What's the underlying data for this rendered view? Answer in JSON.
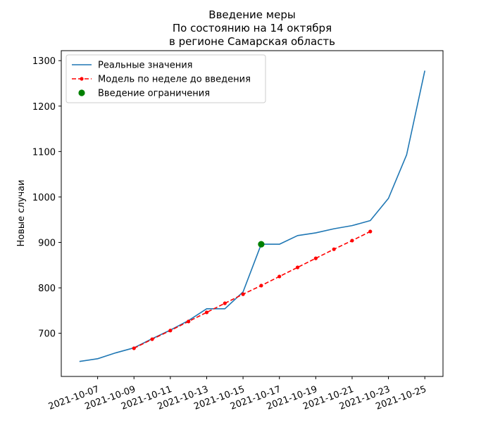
{
  "chart_data": {
    "type": "line",
    "title_lines": [
      "Введение меры",
      "По состоянию на 14 октября",
      "в регионе Самарская область"
    ],
    "xlabel": "",
    "ylabel": "Новые случаи",
    "xlim": [
      "2021-10-05",
      "2021-10-26"
    ],
    "ylim": [
      605,
      1322
    ],
    "x_ticks": [
      "2021-10-07",
      "2021-10-09",
      "2021-10-11",
      "2021-10-13",
      "2021-10-15",
      "2021-10-17",
      "2021-10-19",
      "2021-10-21",
      "2021-10-23",
      "2021-10-25"
    ],
    "y_ticks": [
      700,
      800,
      900,
      1000,
      1100,
      1200,
      1300
    ],
    "x_tick_rotation_deg": 20,
    "grid": false,
    "legend_position": "top-left",
    "series": [
      {
        "name": "Реальные значения",
        "style": "solid",
        "marker": "none",
        "color": "#1f77b4",
        "points": [
          {
            "x": "2021-10-06",
            "y": 638
          },
          {
            "x": "2021-10-07",
            "y": 644
          },
          {
            "x": "2021-10-08",
            "y": 657
          },
          {
            "x": "2021-10-09",
            "y": 668
          },
          {
            "x": "2021-10-10",
            "y": 688
          },
          {
            "x": "2021-10-11",
            "y": 707
          },
          {
            "x": "2021-10-12",
            "y": 728
          },
          {
            "x": "2021-10-13",
            "y": 754
          },
          {
            "x": "2021-10-14",
            "y": 754
          },
          {
            "x": "2021-10-15",
            "y": 791
          },
          {
            "x": "2021-10-16",
            "y": 896
          },
          {
            "x": "2021-10-17",
            "y": 896
          },
          {
            "x": "2021-10-18",
            "y": 915
          },
          {
            "x": "2021-10-19",
            "y": 921
          },
          {
            "x": "2021-10-20",
            "y": 930
          },
          {
            "x": "2021-10-21",
            "y": 937
          },
          {
            "x": "2021-10-22",
            "y": 948
          },
          {
            "x": "2021-10-23",
            "y": 997
          },
          {
            "x": "2021-10-24",
            "y": 1093
          },
          {
            "x": "2021-10-25",
            "y": 1278
          }
        ]
      },
      {
        "name": "Модель по неделе до введения",
        "style": "dashed",
        "marker": "dot",
        "color": "#ff0000",
        "points": [
          {
            "x": "2021-10-09",
            "y": 667
          },
          {
            "x": "2021-10-10",
            "y": 687
          },
          {
            "x": "2021-10-11",
            "y": 706
          },
          {
            "x": "2021-10-12",
            "y": 726
          },
          {
            "x": "2021-10-13",
            "y": 746
          },
          {
            "x": "2021-10-14",
            "y": 766
          },
          {
            "x": "2021-10-15",
            "y": 786
          },
          {
            "x": "2021-10-16",
            "y": 805
          },
          {
            "x": "2021-10-17",
            "y": 825
          },
          {
            "x": "2021-10-18",
            "y": 845
          },
          {
            "x": "2021-10-19",
            "y": 865
          },
          {
            "x": "2021-10-20",
            "y": 885
          },
          {
            "x": "2021-10-21",
            "y": 904
          },
          {
            "x": "2021-10-22",
            "y": 924
          }
        ]
      },
      {
        "name": "Введение ограничения",
        "style": "none",
        "marker": "large-dot",
        "color": "#008000",
        "points": [
          {
            "x": "2021-10-16",
            "y": 896
          }
        ]
      }
    ]
  }
}
